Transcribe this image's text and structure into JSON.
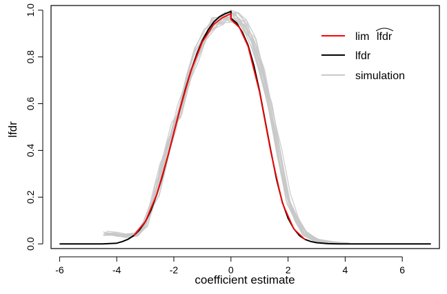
{
  "chart_data": {
    "type": "line",
    "title": "",
    "xlabel": "coefficient estimate",
    "ylabel": "lfdr",
    "xlim": [
      -6.3,
      7.3
    ],
    "ylim": [
      -0.02,
      1.02
    ],
    "x_ticks": [
      -6,
      -4,
      -2,
      0,
      2,
      4,
      6
    ],
    "x_tick_labels": [
      "-6",
      "-4",
      "-2",
      "0",
      "2",
      "4",
      "6"
    ],
    "y_ticks": [
      0.0,
      0.2,
      0.4,
      0.6,
      0.8,
      1.0
    ],
    "y_tick_labels": [
      "0.0",
      "0.2",
      "0.4",
      "0.6",
      "0.8",
      "1.0"
    ],
    "grid": false,
    "legend_position": "top-right",
    "series": [
      {
        "name": "simulation",
        "color": "#c8c8c8",
        "opacity": 0.85,
        "replicates": 14,
        "x": [
          -4.4,
          -4.0,
          -3.6,
          -3.3,
          -3.0,
          -2.8,
          -2.6,
          -2.4,
          -2.2,
          -2.0,
          -1.8,
          -1.5,
          -1.2,
          -0.9,
          -0.6,
          -0.3,
          0.0,
          0.2,
          0.5,
          0.8,
          1.1,
          1.4,
          1.7,
          2.0,
          2.3,
          2.6,
          3.0,
          3.5,
          4.1
        ],
        "y": [
          0.045,
          0.04,
          0.035,
          0.04,
          0.08,
          0.15,
          0.23,
          0.32,
          0.41,
          0.5,
          0.57,
          0.7,
          0.81,
          0.89,
          0.94,
          0.965,
          0.975,
          0.965,
          0.93,
          0.86,
          0.74,
          0.57,
          0.38,
          0.2,
          0.1,
          0.045,
          0.015,
          0.005,
          0.0
        ]
      },
      {
        "name": "lfdr",
        "color": "#000000",
        "x": [
          -6.0,
          -5.5,
          -5.0,
          -4.5,
          -4.0,
          -3.8,
          -3.6,
          -3.4,
          -3.2,
          -3.0,
          -2.8,
          -2.6,
          -2.4,
          -2.2,
          -2.0,
          -1.8,
          -1.6,
          -1.4,
          -1.2,
          -1.0,
          -0.8,
          -0.6,
          -0.4,
          -0.2,
          0.0,
          0.0,
          0.2,
          0.4,
          0.6,
          0.8,
          1.0,
          1.2,
          1.4,
          1.6,
          1.8,
          2.0,
          2.2,
          2.4,
          2.6,
          2.8,
          3.0,
          3.4,
          3.8,
          4.2,
          5.0,
          6.0,
          7.0
        ],
        "y": [
          0.0,
          0.0,
          0.0,
          0.0,
          0.003,
          0.01,
          0.02,
          0.036,
          0.06,
          0.095,
          0.145,
          0.21,
          0.29,
          0.38,
          0.475,
          0.57,
          0.66,
          0.74,
          0.81,
          0.87,
          0.915,
          0.95,
          0.972,
          0.985,
          0.995,
          0.965,
          0.945,
          0.905,
          0.85,
          0.765,
          0.655,
          0.525,
          0.395,
          0.275,
          0.178,
          0.11,
          0.065,
          0.035,
          0.019,
          0.01,
          0.005,
          0.001,
          0.0,
          0.0,
          0.0,
          0.0,
          0.0
        ]
      },
      {
        "name": "lim lfdr (hat)",
        "color": "#ff0000",
        "x": [
          -3.4,
          -3.0,
          -2.6,
          -2.2,
          -1.8,
          -1.4,
          -1.0,
          -0.6,
          -0.3,
          0.0,
          0.0,
          0.3,
          0.6,
          1.0,
          1.4,
          1.8,
          2.2,
          2.6
        ],
        "y": [
          0.036,
          0.095,
          0.21,
          0.38,
          0.57,
          0.74,
          0.865,
          0.94,
          0.968,
          0.985,
          0.96,
          0.925,
          0.845,
          0.65,
          0.39,
          0.175,
          0.064,
          0.018
        ]
      }
    ],
    "legend": [
      {
        "label": "lim",
        "label_hat": "lfdr",
        "color": "#ff0000"
      },
      {
        "label": "lfdr",
        "color": "#000000"
      },
      {
        "label": "simulation",
        "color": "#c8c8c8"
      }
    ]
  }
}
